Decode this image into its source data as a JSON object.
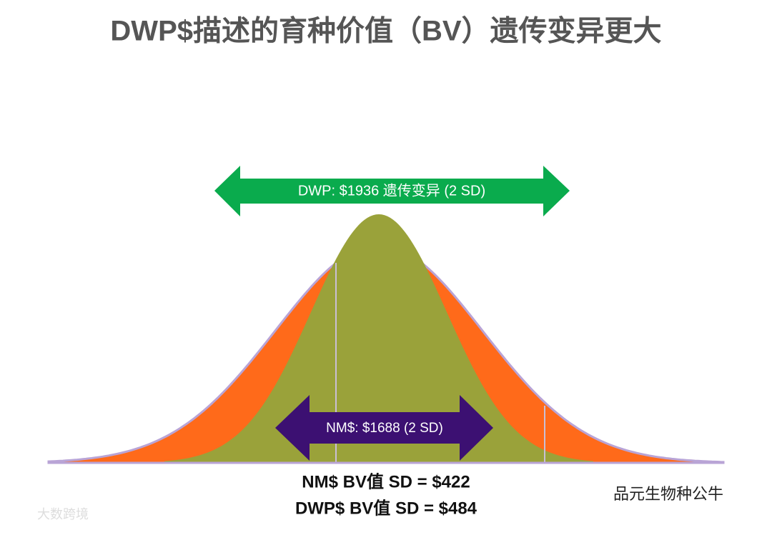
{
  "title": "DWP$描述的育种价值（BV）遗传变异更大",
  "arrows": {
    "dwp": "DWP: $1936 遗传变异 (2 SD)",
    "nm": "NM$: $1688 (2 SD)"
  },
  "footer": {
    "line1": "NM$ BV值 SD  = $422",
    "line2": "DWP$ BV值 SD = $484"
  },
  "watermarks": {
    "right": "品元生物种公牛",
    "left": "大数跨境"
  }
}
